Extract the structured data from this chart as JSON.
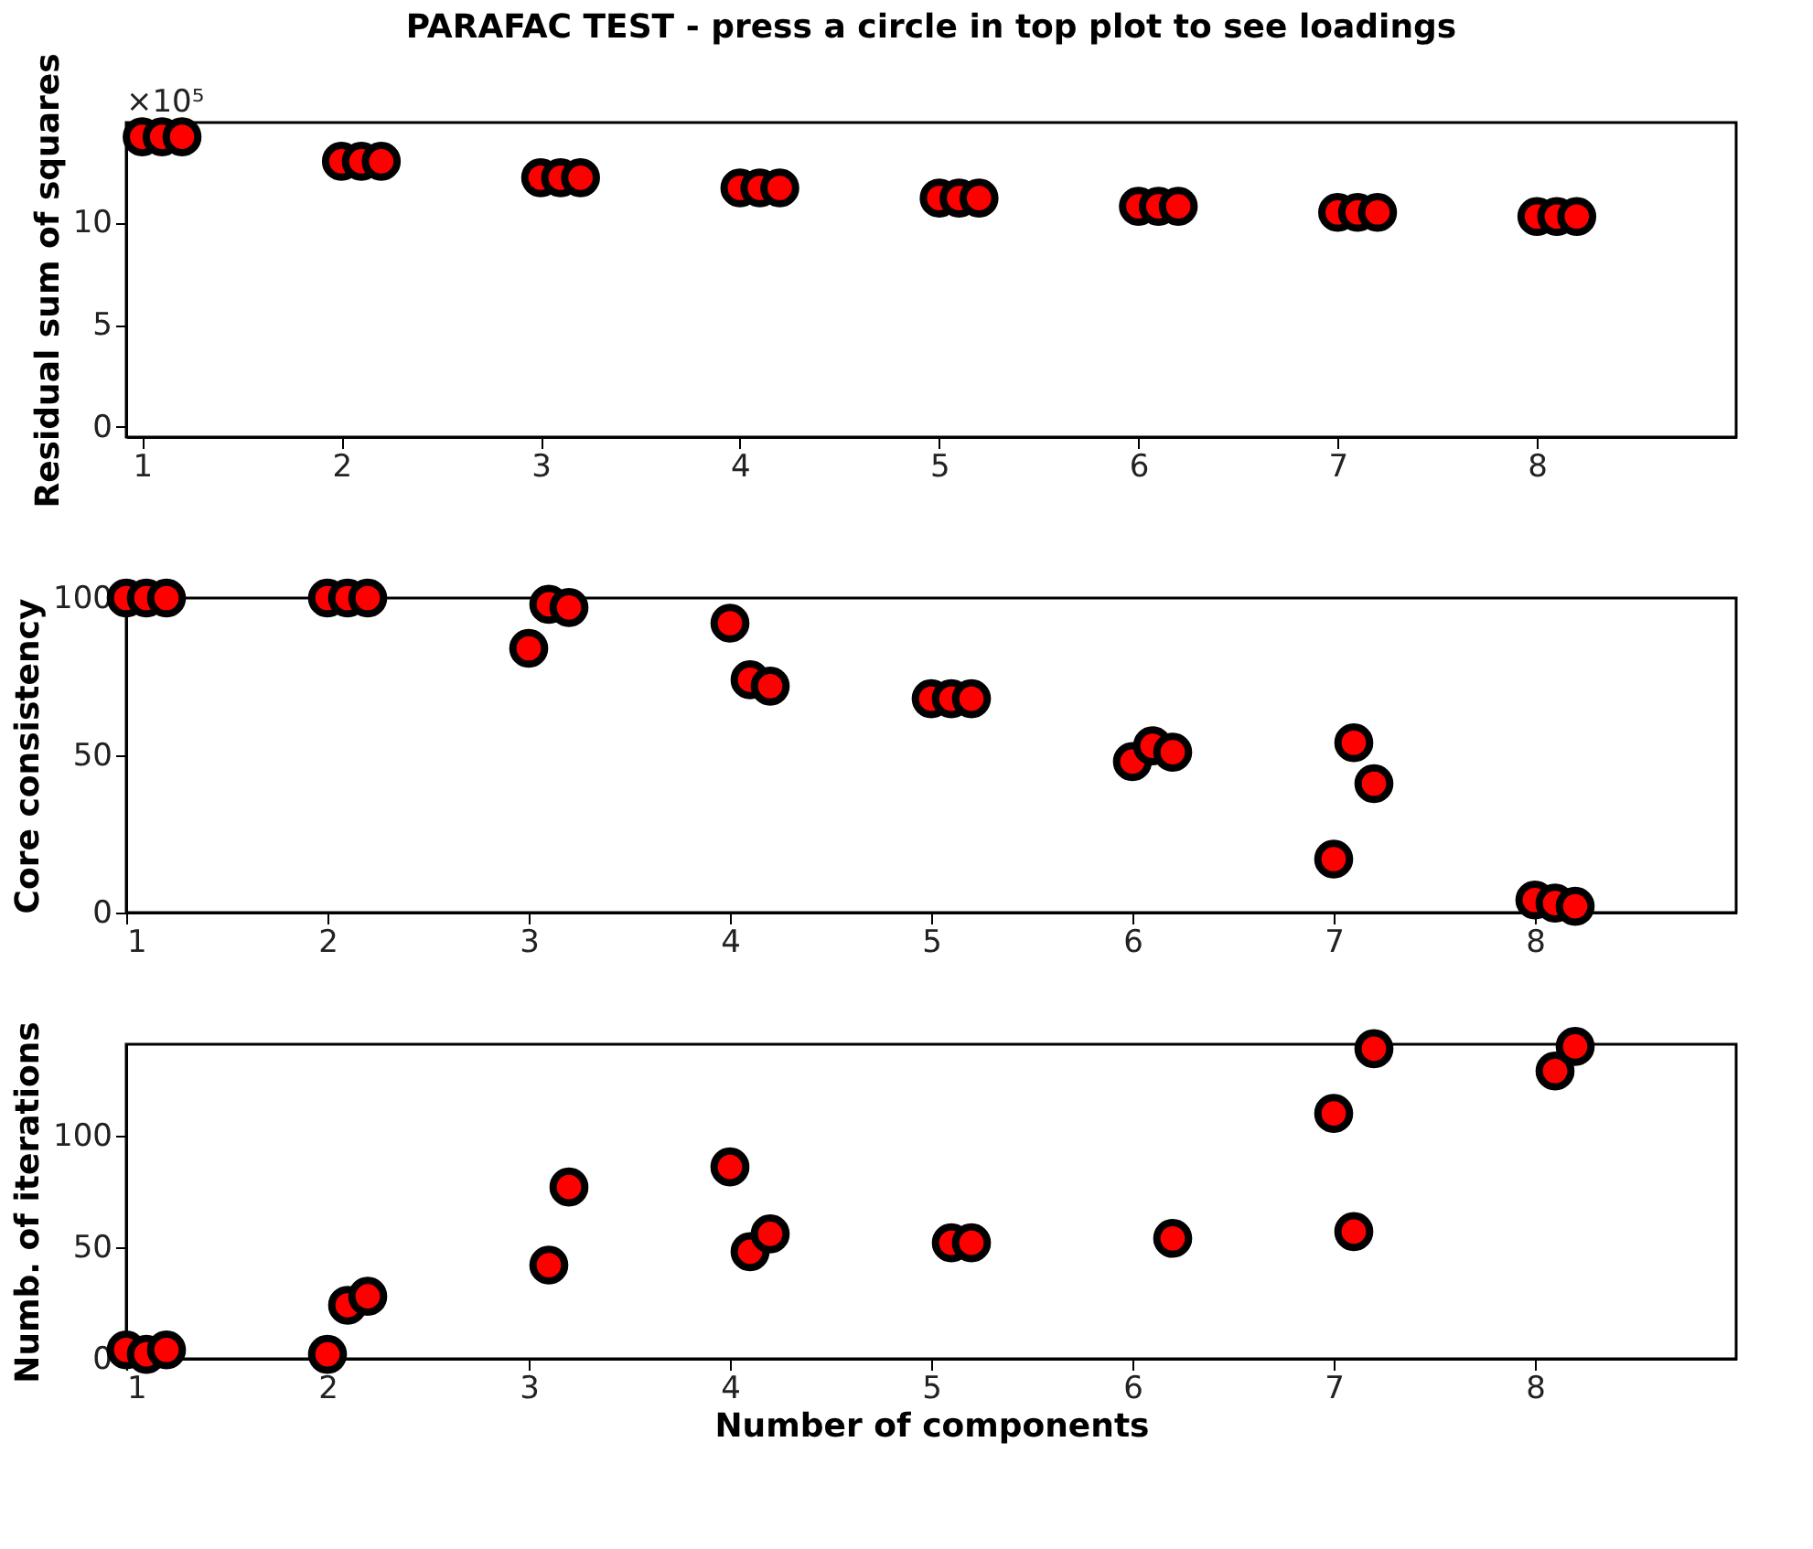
{
  "chart_data": [
    {
      "type": "scatter",
      "title": "PARAFAC TEST - press a circle in top plot to see loadings",
      "ylabel": "Residual sum of squares",
      "annotations": [
        "×10⁵"
      ],
      "xlim": [
        0.92,
        9
      ],
      "xticks": [
        1,
        2,
        3,
        4,
        5,
        6,
        7,
        8
      ],
      "ylim": [
        -0.5,
        14.9
      ],
      "yticks": [
        0,
        5,
        10
      ],
      "grid": false,
      "marker": "circle",
      "series": [
        {
          "color": "#ff0000",
          "x": [
            1,
            1.1,
            1.2,
            2,
            2.1,
            2.2,
            3,
            3.1,
            3.2,
            4,
            4.1,
            4.2,
            5,
            5.1,
            5.2,
            6,
            6.1,
            6.2,
            7,
            7.1,
            7.2,
            8,
            8.1,
            8.2
          ],
          "values": [
            14.2,
            14.2,
            14.2,
            13.0,
            13.0,
            13.0,
            12.2,
            12.2,
            12.2,
            11.7,
            11.7,
            11.7,
            11.2,
            11.2,
            11.2,
            10.8,
            10.8,
            10.8,
            10.5,
            10.5,
            10.5,
            10.3,
            10.3,
            10.3
          ]
        }
      ]
    },
    {
      "type": "scatter",
      "ylabel": "Core consistency",
      "xlim": [
        1,
        9
      ],
      "xticks": [
        1,
        2,
        3,
        4,
        5,
        6,
        7,
        8
      ],
      "ylim": [
        0,
        100
      ],
      "yticks": [
        0,
        50,
        100
      ],
      "grid": false,
      "marker": "circle",
      "series": [
        {
          "color": "#ff0000",
          "x": [
            1,
            1.1,
            1.2,
            2,
            2.1,
            2.2,
            3,
            3.1,
            3.2,
            4,
            4.1,
            4.2,
            5,
            5.1,
            5.2,
            6,
            6.1,
            6.2,
            7,
            7.1,
            7.2,
            8,
            8.1,
            8.2
          ],
          "values": [
            100,
            100,
            100,
            100,
            100,
            100,
            84,
            98,
            97,
            92,
            74,
            72,
            68,
            68,
            68,
            48,
            53,
            51,
            17,
            54,
            41,
            4,
            3,
            2
          ]
        }
      ]
    },
    {
      "type": "scatter",
      "xlabel": "Number of components",
      "ylabel": "Numb. of iterations",
      "xlim": [
        1,
        9
      ],
      "xticks": [
        1,
        2,
        3,
        4,
        5,
        6,
        7,
        8
      ],
      "ylim": [
        0,
        141
      ],
      "yticks": [
        0,
        50,
        100
      ],
      "grid": false,
      "marker": "circle",
      "series": [
        {
          "color": "#ff0000",
          "x": [
            1,
            1.1,
            1.2,
            2,
            2.1,
            2.2,
            3.1,
            3.2,
            4,
            4.1,
            4.2,
            5.1,
            5.2,
            6.2,
            7,
            7.1,
            7.2,
            8.1,
            8.2
          ],
          "values": [
            4,
            2,
            4,
            2,
            24,
            28,
            42,
            77,
            86,
            48,
            56,
            52,
            52,
            54,
            110,
            57,
            139,
            129,
            140
          ]
        }
      ]
    }
  ]
}
